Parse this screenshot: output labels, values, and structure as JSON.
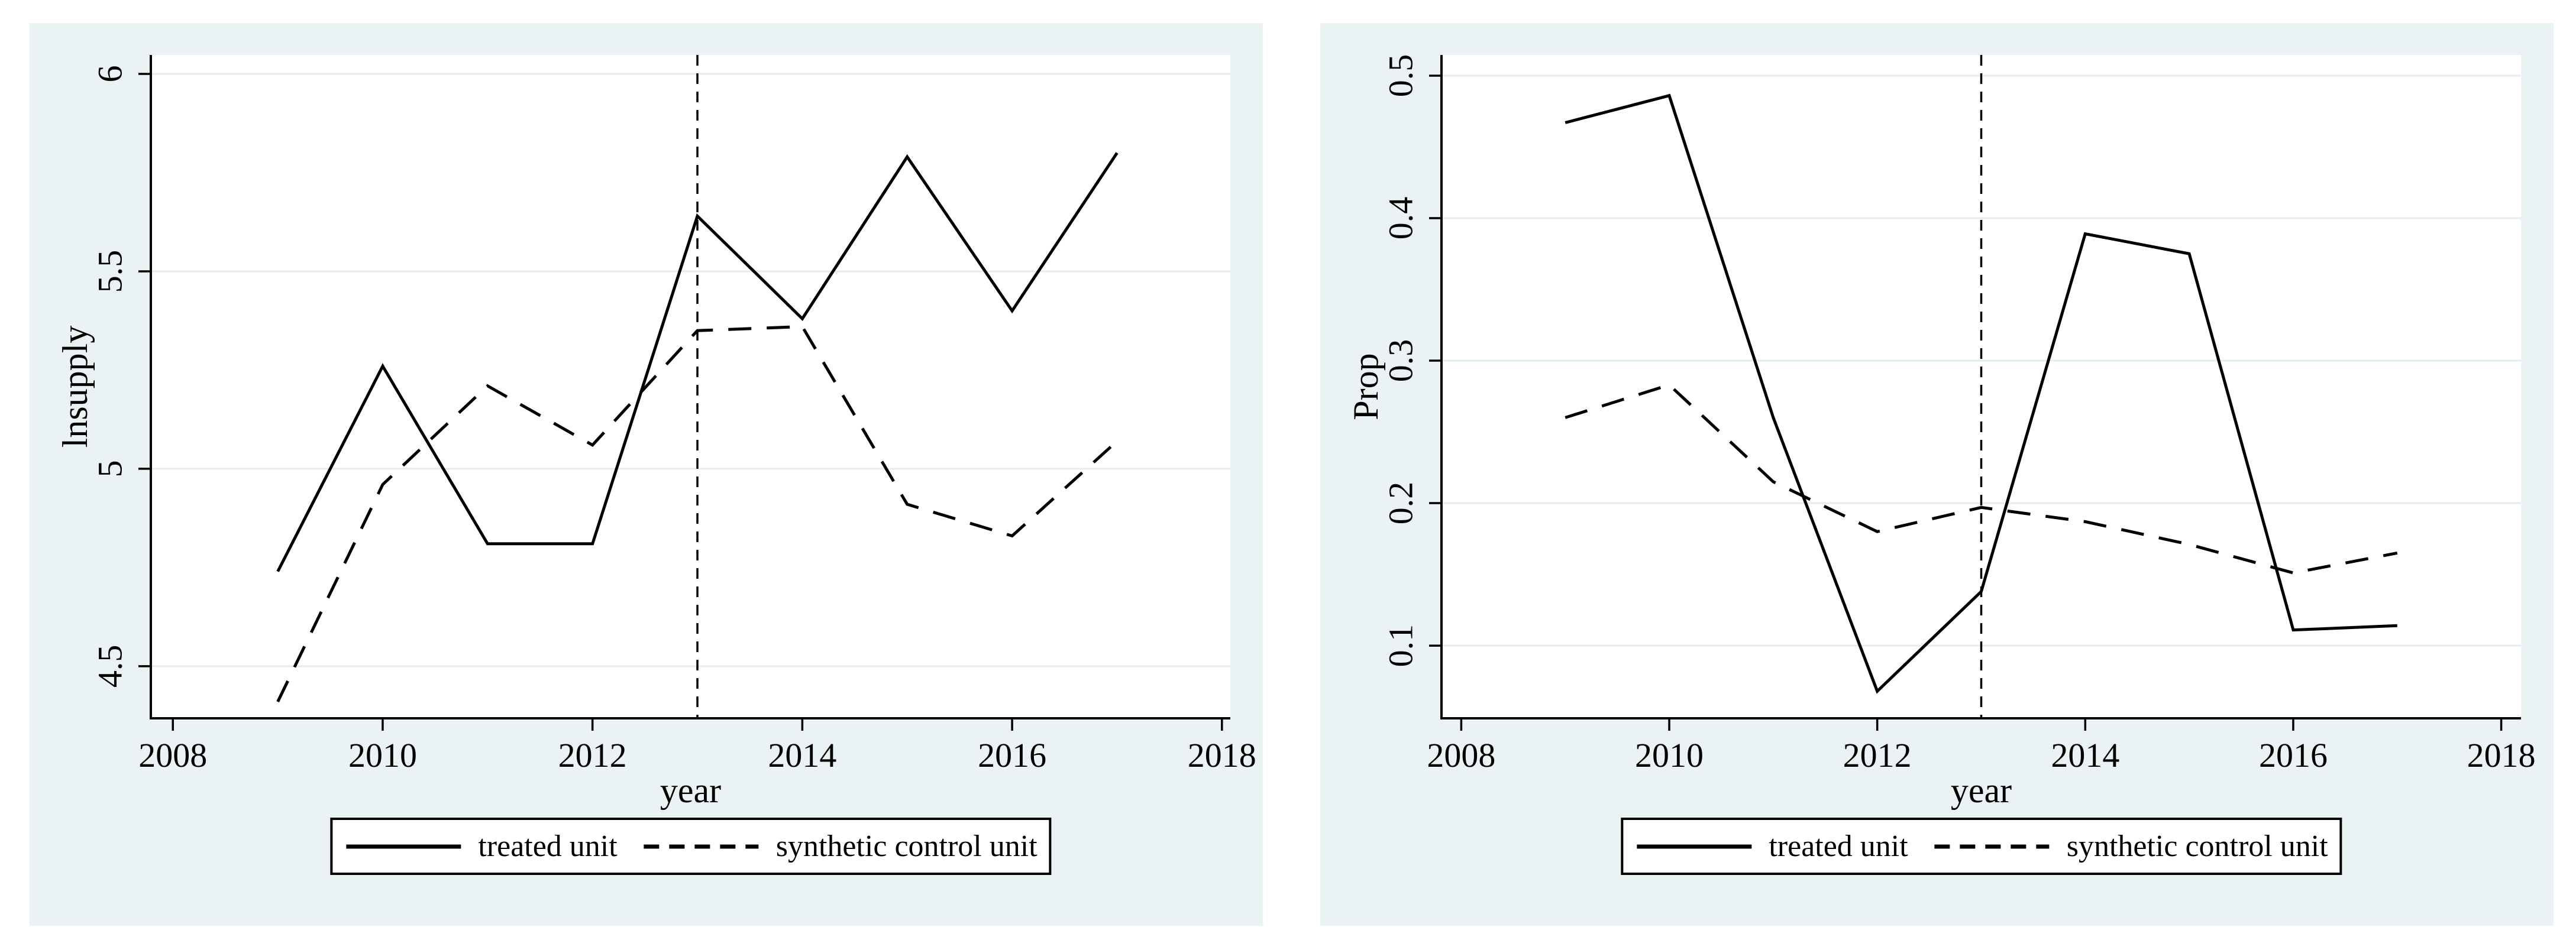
{
  "colors": {
    "page_background": "#ffffff",
    "figure_background": "#eaf2f3",
    "plot_background": "#ffffff",
    "gridline": "#e2eef1",
    "axis": "#000000",
    "line": "#000000",
    "treatment_line": "#000000",
    "text": "#000000"
  },
  "chart_data": [
    {
      "id": "lnsupply",
      "type": "line",
      "title": "",
      "xlabel": "year",
      "ylabel": "lnsupply",
      "x": [
        2009,
        2010,
        2011,
        2012,
        2013,
        2014,
        2015,
        2016,
        2017
      ],
      "series": [
        {
          "name": "treated unit",
          "line_style": "solid",
          "values": [
            4.74,
            5.26,
            4.81,
            4.81,
            5.64,
            5.38,
            5.79,
            5.4,
            5.8
          ]
        },
        {
          "name": "synthetic control unit",
          "line_style": "dashed",
          "values": [
            4.41,
            4.96,
            5.21,
            5.06,
            5.35,
            5.36,
            4.91,
            4.83,
            5.07
          ]
        }
      ],
      "treatment_vline_x": 2013,
      "xlim": [
        2007.79,
        2018.08
      ],
      "ylim": [
        4.368,
        6.048
      ],
      "xticks": [
        2008,
        2010,
        2012,
        2014,
        2016,
        2018
      ],
      "yticks": [
        4.5,
        5,
        5.5,
        6
      ],
      "ytick_labels": [
        "4.5",
        "5",
        "5.5",
        "6"
      ],
      "grid": true,
      "legend_position": "bottom-center"
    },
    {
      "id": "prop",
      "type": "line",
      "title": "",
      "xlabel": "year",
      "ylabel": "Prop",
      "x": [
        2009,
        2010,
        2011,
        2012,
        2013,
        2014,
        2015,
        2016,
        2017
      ],
      "series": [
        {
          "name": "treated unit",
          "line_style": "solid",
          "values": [
            0.467,
            0.486,
            0.26,
            0.068,
            0.138,
            0.389,
            0.375,
            0.111,
            0.114
          ]
        },
        {
          "name": "synthetic control unit",
          "line_style": "dashed",
          "values": [
            0.26,
            0.283,
            0.215,
            0.18,
            0.197,
            0.187,
            0.171,
            0.151,
            0.165
          ]
        }
      ],
      "treatment_vline_x": 2013,
      "xlim": [
        2007.81,
        2018.19
      ],
      "ylim": [
        0.049,
        0.5145
      ],
      "xticks": [
        2008,
        2010,
        2012,
        2014,
        2016,
        2018
      ],
      "yticks": [
        0.1,
        0.2,
        0.3,
        0.4,
        0.5
      ],
      "ytick_labels": [
        "0.1",
        "0.2",
        "0.3",
        "0.4",
        "0.5"
      ],
      "grid": true,
      "legend_position": "bottom-center"
    }
  ]
}
